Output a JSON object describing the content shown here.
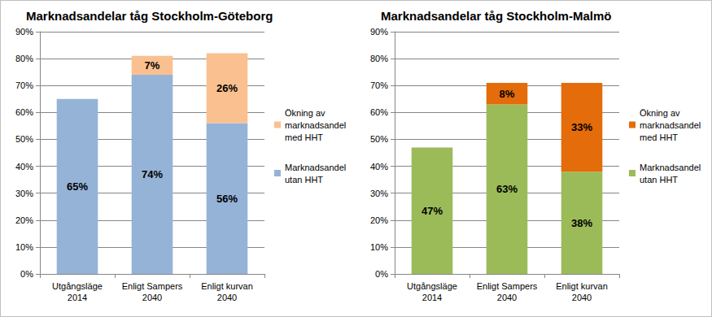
{
  "chart_data": [
    {
      "type": "bar",
      "title": "Marknadsandelar tåg Stockholm-Göteborg",
      "categories": [
        "Utgångsläge\n2014",
        "Enligt Sampers\n2040",
        "Enligt kurvan\n2040"
      ],
      "stacked": true,
      "data_labels": true,
      "grid": true,
      "legend": "right",
      "ylim": [
        0,
        90
      ],
      "yticks": [
        {
          "value": 0,
          "label": "0%"
        },
        {
          "value": 10,
          "label": "10%"
        },
        {
          "value": 20,
          "label": "20%"
        },
        {
          "value": 30,
          "label": "30%"
        },
        {
          "value": 40,
          "label": "40%"
        },
        {
          "value": 50,
          "label": "50%"
        },
        {
          "value": 60,
          "label": "60%"
        },
        {
          "value": 70,
          "label": "70%"
        },
        {
          "value": 80,
          "label": "80%"
        },
        {
          "value": 90,
          "label": "90%"
        }
      ],
      "series": [
        {
          "name": "Marknadsandel utan HHT",
          "color": "#95b3d7",
          "values": [
            65,
            74,
            56
          ],
          "value_labels": [
            "65%",
            "74%",
            "56%"
          ]
        },
        {
          "name": "Ökning av marknadsandel med HHT",
          "color": "#fac090",
          "values": [
            null,
            7,
            26
          ],
          "value_labels": [
            null,
            "7%",
            "26%"
          ]
        }
      ]
    },
    {
      "type": "bar",
      "title": "Marknadsandelar tåg Stockholm-Malmö",
      "categories": [
        "Utgångsläge\n2014",
        "Enligt Sampers\n2040",
        "Enligt kurvan\n2040"
      ],
      "stacked": true,
      "data_labels": true,
      "grid": true,
      "legend": "right",
      "ylim": [
        0,
        90
      ],
      "yticks": [
        {
          "value": 0,
          "label": "0%"
        },
        {
          "value": 10,
          "label": "10%"
        },
        {
          "value": 20,
          "label": "20%"
        },
        {
          "value": 30,
          "label": "30%"
        },
        {
          "value": 40,
          "label": "40%"
        },
        {
          "value": 50,
          "label": "50%"
        },
        {
          "value": 60,
          "label": "60%"
        },
        {
          "value": 70,
          "label": "70%"
        },
        {
          "value": 80,
          "label": "80%"
        },
        {
          "value": 90,
          "label": "90%"
        }
      ],
      "series": [
        {
          "name": "Marknadsandel utan HHT",
          "color": "#9bbb59",
          "values": [
            47,
            63,
            38
          ],
          "value_labels": [
            "47%",
            "63%",
            "38%"
          ]
        },
        {
          "name": "Ökning av marknadsandel med HHT",
          "color": "#e46c0a",
          "values": [
            null,
            8,
            33
          ],
          "value_labels": [
            null,
            "8%",
            "33%"
          ]
        }
      ]
    }
  ]
}
